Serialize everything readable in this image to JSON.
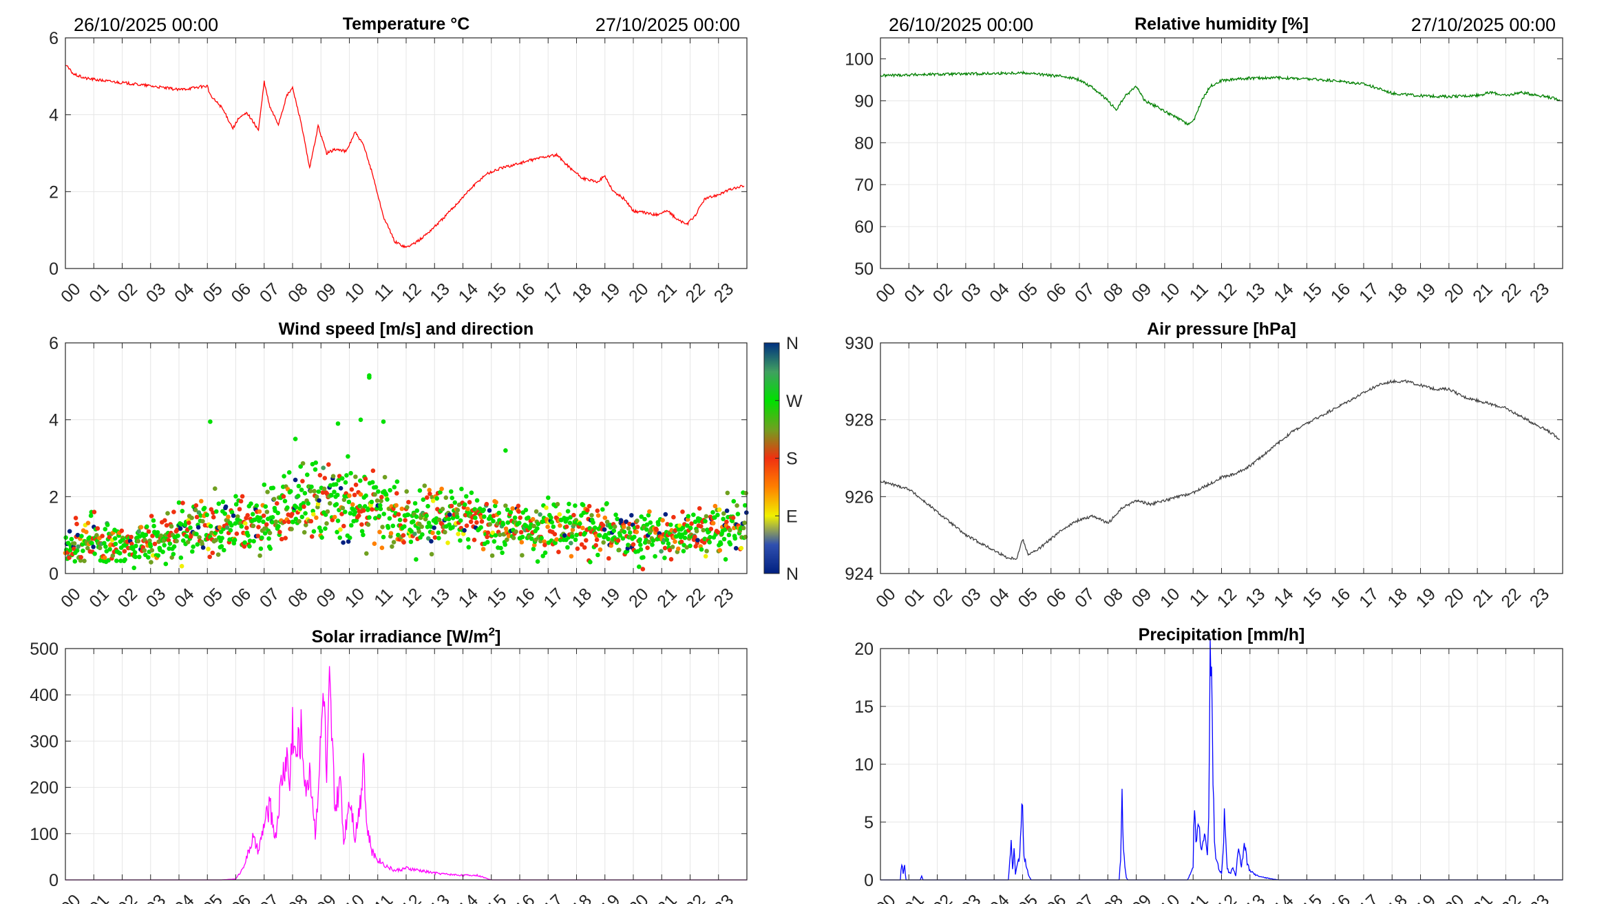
{
  "dates": {
    "start": "26/10/2025 00:00",
    "end": "27/10/2025 00:00"
  },
  "hour_ticks": [
    "00",
    "01",
    "02",
    "03",
    "04",
    "05",
    "06",
    "07",
    "08",
    "09",
    "10",
    "11",
    "12",
    "13",
    "14",
    "15",
    "16",
    "17",
    "18",
    "19",
    "20",
    "21",
    "22",
    "23"
  ],
  "compass_labels": [
    "N",
    "W",
    "S",
    "E",
    "N"
  ],
  "chart_data": [
    {
      "id": "temperature",
      "type": "line",
      "title": "Temperature °C",
      "color": "#ff0000",
      "ylim": [
        0,
        6
      ],
      "yticks": [
        "0",
        "2",
        "4",
        "6"
      ],
      "xlim": [
        0,
        24
      ],
      "grid": true,
      "show_dates": true,
      "x": [
        0,
        0.3,
        0.7,
        1.2,
        1.8,
        2.4,
        3.0,
        3.5,
        4.0,
        4.5,
        5.0,
        5.1,
        5.5,
        5.9,
        6.1,
        6.4,
        6.8,
        7.0,
        7.2,
        7.5,
        7.8,
        8.0,
        8.3,
        8.6,
        8.9,
        9.2,
        9.5,
        9.9,
        10.2,
        10.5,
        10.8,
        11.2,
        11.6,
        12.0,
        12.4,
        12.8,
        13.3,
        13.8,
        14.3,
        14.8,
        15.3,
        15.8,
        16.3,
        16.8,
        17.3,
        17.8,
        18.2,
        18.7,
        19.0,
        19.3,
        19.7,
        20.0,
        20.4,
        20.8,
        21.2,
        21.6,
        21.9,
        22.2,
        22.5,
        22.9,
        23.4,
        23.9
      ],
      "y": [
        5.3,
        5.05,
        4.95,
        4.9,
        4.85,
        4.8,
        4.75,
        4.7,
        4.65,
        4.7,
        4.75,
        4.5,
        4.2,
        3.65,
        3.9,
        4.05,
        3.6,
        4.85,
        4.2,
        3.75,
        4.5,
        4.7,
        3.8,
        2.6,
        3.7,
        3.0,
        3.1,
        3.05,
        3.55,
        3.2,
        2.5,
        1.35,
        0.7,
        0.55,
        0.7,
        0.95,
        1.3,
        1.7,
        2.1,
        2.45,
        2.6,
        2.7,
        2.8,
        2.9,
        2.95,
        2.6,
        2.35,
        2.25,
        2.4,
        2.0,
        1.8,
        1.5,
        1.45,
        1.4,
        1.5,
        1.25,
        1.15,
        1.4,
        1.8,
        1.9,
        2.05,
        2.15
      ]
    },
    {
      "id": "humidity",
      "type": "line",
      "title": "Relative humidity [%]",
      "color": "#008000",
      "ylim": [
        50,
        105
      ],
      "yticks": [
        "50",
        "60",
        "70",
        "80",
        "90",
        "100"
      ],
      "xlim": [
        0,
        24
      ],
      "grid": true,
      "show_dates": true,
      "x": [
        0,
        1,
        2,
        3,
        4,
        5,
        5.5,
        6,
        6.5,
        7,
        7.5,
        8,
        8.3,
        8.6,
        9,
        9.3,
        9.6,
        10,
        10.4,
        10.8,
        11.0,
        11.3,
        11.6,
        12,
        12.5,
        13,
        14,
        15,
        16,
        17,
        17.5,
        18,
        19,
        20,
        21,
        21.5,
        22,
        22.5,
        23,
        23.9
      ],
      "y": [
        96,
        96.2,
        96.3,
        96.4,
        96.5,
        96.7,
        96.4,
        96,
        95.8,
        95,
        93,
        90,
        87.8,
        91,
        93.5,
        90,
        89,
        87.5,
        86,
        84.5,
        85,
        90,
        93.5,
        94.8,
        95.2,
        95.4,
        95.5,
        95.2,
        94.8,
        94,
        93,
        91.8,
        91.2,
        91,
        91.3,
        92,
        91.2,
        92,
        91.5,
        90.3
      ]
    },
    {
      "id": "wind",
      "type": "scatter",
      "title": "Wind speed [m/s] and direction",
      "ylim": [
        0,
        6
      ],
      "yticks": [
        "0",
        "2",
        "4",
        "6"
      ],
      "xlim": [
        0,
        24
      ],
      "grid": true,
      "show_dates": false,
      "colorbar": true,
      "colormap": [
        "#002080",
        "#3050b0",
        "#f0f000",
        "#ff8000",
        "#f03010",
        "#70a020",
        "#00e000",
        "#40a060",
        "#003080"
      ],
      "hours": [
        0,
        1,
        2,
        3,
        4,
        5,
        6,
        7,
        8,
        9,
        10,
        11,
        12,
        13,
        14,
        15,
        16,
        17,
        18,
        19,
        20,
        21,
        22,
        23,
        23.9
      ],
      "speed": [
        0.7,
        0.9,
        0.6,
        0.8,
        1.0,
        1.2,
        1.3,
        1.4,
        1.7,
        1.9,
        2.0,
        1.7,
        1.4,
        1.5,
        1.4,
        1.3,
        1.1,
        1.2,
        1.2,
        1.1,
        1.0,
        1.0,
        1.1,
        1.2,
        1.3
      ],
      "spread": [
        0.35,
        0.45,
        0.35,
        0.4,
        0.45,
        0.55,
        0.5,
        0.55,
        0.6,
        0.7,
        0.75,
        0.6,
        0.55,
        0.55,
        0.5,
        0.5,
        0.45,
        0.5,
        0.5,
        0.45,
        0.45,
        0.45,
        0.45,
        0.5,
        0.5
      ],
      "outliers": [
        [
          10.7,
          5.1
        ],
        [
          10.7,
          5.15
        ],
        [
          5.1,
          3.95
        ],
        [
          10.4,
          4.0
        ],
        [
          9.6,
          3.9
        ],
        [
          11.2,
          3.95
        ],
        [
          8.1,
          3.5
        ],
        [
          15.5,
          3.2
        ]
      ]
    },
    {
      "id": "pressure",
      "type": "line",
      "title": "Air pressure [hPa]",
      "color": "#404040",
      "ylim": [
        924,
        930
      ],
      "yticks": [
        "924",
        "926",
        "928",
        "930"
      ],
      "xlim": [
        0,
        24
      ],
      "grid": true,
      "show_dates": false,
      "x": [
        0,
        0.5,
        1,
        1.5,
        2,
        2.5,
        3,
        3.5,
        4,
        4.5,
        4.8,
        5,
        5.2,
        5.5,
        6,
        6.5,
        7,
        7.5,
        8,
        8.5,
        9,
        9.5,
        10,
        10.5,
        11,
        11.5,
        12,
        12.5,
        13,
        13.5,
        14,
        14.5,
        15,
        15.5,
        16,
        16.5,
        17,
        17.5,
        18,
        18.5,
        19,
        19.5,
        20,
        20.5,
        21,
        21.5,
        22,
        22.5,
        23,
        23.5,
        23.9
      ],
      "y": [
        926.4,
        926.3,
        926.2,
        925.9,
        925.6,
        925.3,
        925.0,
        924.8,
        924.6,
        924.4,
        924.4,
        924.9,
        924.5,
        924.6,
        924.9,
        925.2,
        925.4,
        925.5,
        925.3,
        925.7,
        925.9,
        925.8,
        925.9,
        926.0,
        926.1,
        926.3,
        926.5,
        926.6,
        926.8,
        927.1,
        927.4,
        927.7,
        927.9,
        928.1,
        928.3,
        928.5,
        928.7,
        928.9,
        929.0,
        929.0,
        928.9,
        928.8,
        928.8,
        928.6,
        928.5,
        928.4,
        928.3,
        928.1,
        927.9,
        927.7,
        927.5
      ]
    },
    {
      "id": "solar",
      "type": "line",
      "title": "Solar irradiance [W/m²]",
      "title_main": "Solar irradiance [W/m",
      "title_sup": "2",
      "title_end": "]",
      "color": "#ff00ff",
      "ylim": [
        0,
        500
      ],
      "yticks": [
        "0",
        "100",
        "200",
        "300",
        "400",
        "500"
      ],
      "xlim": [
        0,
        24
      ],
      "grid": true,
      "show_dates": false,
      "x": [
        0,
        5.5,
        6.0,
        6.2,
        6.4,
        6.6,
        6.8,
        7.0,
        7.2,
        7.4,
        7.6,
        7.8,
        7.9,
        8.0,
        8.1,
        8.3,
        8.5,
        8.6,
        8.8,
        9.0,
        9.1,
        9.2,
        9.3,
        9.5,
        9.7,
        9.8,
        10.0,
        10.1,
        10.2,
        10.4,
        10.5,
        10.6,
        10.8,
        11.0,
        11.3,
        11.6,
        12.0,
        12.5,
        13.0,
        13.5,
        14.0,
        14.5,
        15.0,
        24
      ],
      "y": [
        0,
        0,
        2,
        20,
        50,
        90,
        60,
        120,
        160,
        90,
        210,
        270,
        200,
        345,
        260,
        320,
        180,
        250,
        100,
        300,
        420,
        200,
        410,
        150,
        210,
        80,
        180,
        150,
        90,
        180,
        290,
        120,
        60,
        45,
        30,
        20,
        25,
        20,
        15,
        12,
        10,
        10,
        0,
        0
      ]
    },
    {
      "id": "precip",
      "type": "line",
      "title": "Precipitation [mm/h]",
      "color": "#0000ff",
      "ylim": [
        0,
        20
      ],
      "yticks": [
        "0",
        "5",
        "10",
        "15",
        "20"
      ],
      "xlim": [
        0,
        24
      ],
      "grid": true,
      "show_dates": false,
      "x": [
        0,
        0.7,
        0.75,
        0.8,
        0.85,
        0.9,
        1.4,
        1.45,
        1.5,
        4.5,
        4.55,
        4.6,
        4.65,
        4.7,
        4.75,
        4.8,
        4.9,
        5.0,
        5.05,
        5.1,
        5.2,
        5.3,
        8.4,
        8.45,
        8.5,
        8.55,
        8.6,
        8.65,
        8.7,
        10.8,
        11.0,
        11.05,
        11.1,
        11.2,
        11.3,
        11.4,
        11.5,
        11.55,
        11.6,
        11.65,
        11.7,
        11.75,
        11.8,
        11.9,
        12.0,
        12.05,
        12.1,
        12.15,
        12.2,
        12.3,
        12.4,
        12.5,
        12.6,
        12.7,
        12.8,
        12.9,
        13.0,
        13.2,
        13.5,
        14.0,
        24
      ],
      "y": [
        0,
        0,
        1.5,
        0.5,
        1.2,
        0,
        0,
        0.3,
        0,
        0,
        1.5,
        4.0,
        1.0,
        2.5,
        0.5,
        1.2,
        2.0,
        7.1,
        2.0,
        1.5,
        0.5,
        0,
        0,
        2.0,
        7.2,
        3.0,
        1.0,
        0.2,
        0,
        0,
        1.0,
        7.0,
        3.0,
        5.0,
        2.5,
        4.5,
        2.0,
        6.0,
        18.3,
        18.2,
        8.0,
        4.0,
        2.0,
        1.0,
        0.5,
        2.0,
        5.8,
        3.0,
        1.0,
        0.5,
        1.0,
        0.3,
        3.0,
        1.0,
        3.2,
        1.5,
        0.8,
        0.4,
        0.2,
        0,
        0
      ]
    }
  ]
}
